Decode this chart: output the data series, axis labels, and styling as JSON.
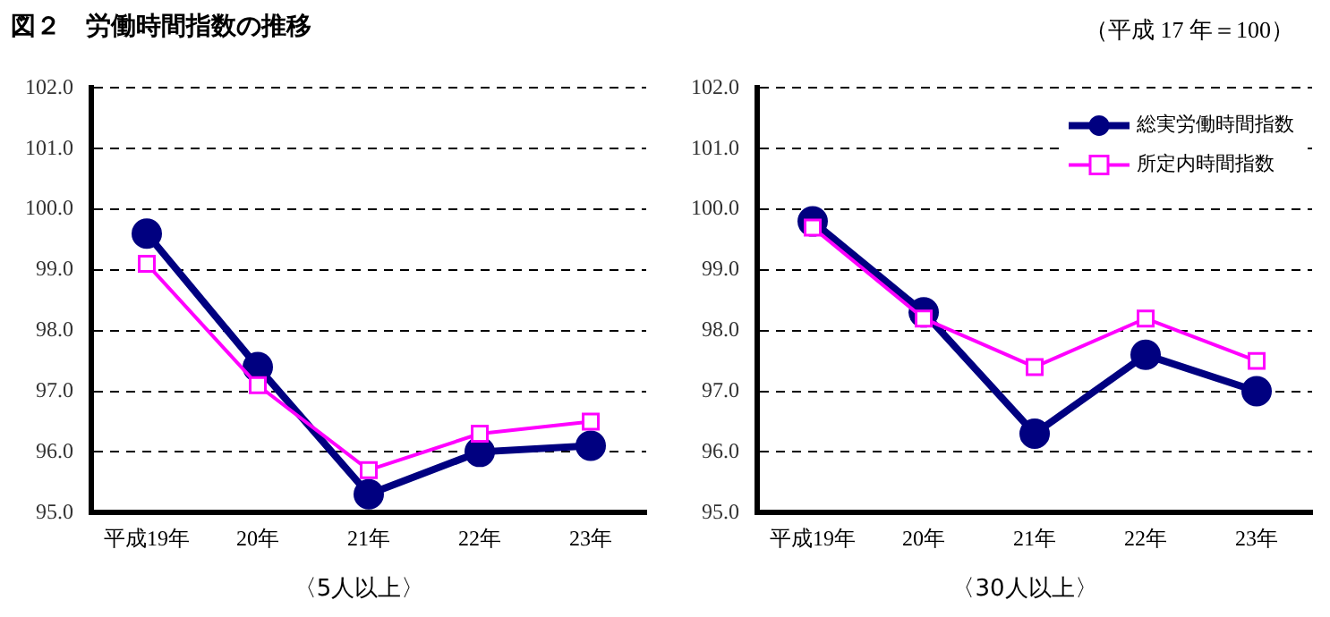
{
  "chart_data": [
    {
      "type": "line",
      "title": "図２　労働時間指数の推移",
      "xlabel": "〈5人以上〉",
      "categories": [
        "平成19年",
        "20年",
        "21年",
        "22年",
        "23年"
      ],
      "series": [
        {
          "color": "#000080",
          "marker": "circle",
          "values": [
            99.6,
            97.4,
            95.3,
            96.0,
            96.1
          ]
        },
        {
          "color": "#ff00ff",
          "marker": "square",
          "values": [
            99.1,
            97.1,
            95.7,
            96.3,
            96.5
          ]
        }
      ],
      "ylim": [
        95,
        102
      ],
      "yticks": [
        {
          "value": 95,
          "label": "95.0"
        },
        {
          "value": 96,
          "label": "96.0"
        },
        {
          "value": 97,
          "label": "97.0"
        },
        {
          "value": 98,
          "label": "98.0"
        },
        {
          "value": 99,
          "label": "99.0"
        },
        {
          "value": 100,
          "label": "100.0"
        },
        {
          "value": 101,
          "label": "101.0"
        },
        {
          "value": 102,
          "label": "102.0"
        }
      ],
      "grid": "y",
      "legend": false,
      "line_style": "solid"
    },
    {
      "type": "line",
      "subtitle": "（平成 17 年＝100）",
      "xlabel": "〈30人以上〉",
      "categories": [
        "平成19年",
        "20年",
        "21年",
        "22年",
        "23年"
      ],
      "series": [
        {
          "name": "総実労働時間指数",
          "color": "#000080",
          "marker": "circle",
          "values": [
            99.8,
            98.3,
            96.3,
            97.6,
            97.0
          ]
        },
        {
          "name": "所定内時間指数",
          "color": "#ff00ff",
          "marker": "square",
          "values": [
            99.7,
            98.2,
            97.4,
            98.2,
            97.5
          ]
        }
      ],
      "ylim": [
        95,
        102
      ],
      "yticks": [
        {
          "value": 95,
          "label": "95.0"
        },
        {
          "value": 96,
          "label": "96.0"
        },
        {
          "value": 97,
          "label": "97.0"
        },
        {
          "value": 98,
          "label": "98.0"
        },
        {
          "value": 99,
          "label": "99.0"
        },
        {
          "value": 100,
          "label": "100.0"
        },
        {
          "value": 101,
          "label": "101.0"
        },
        {
          "value": 102,
          "label": "102.0"
        }
      ],
      "grid": "y",
      "legend": "top right",
      "line_style": "solid"
    }
  ]
}
